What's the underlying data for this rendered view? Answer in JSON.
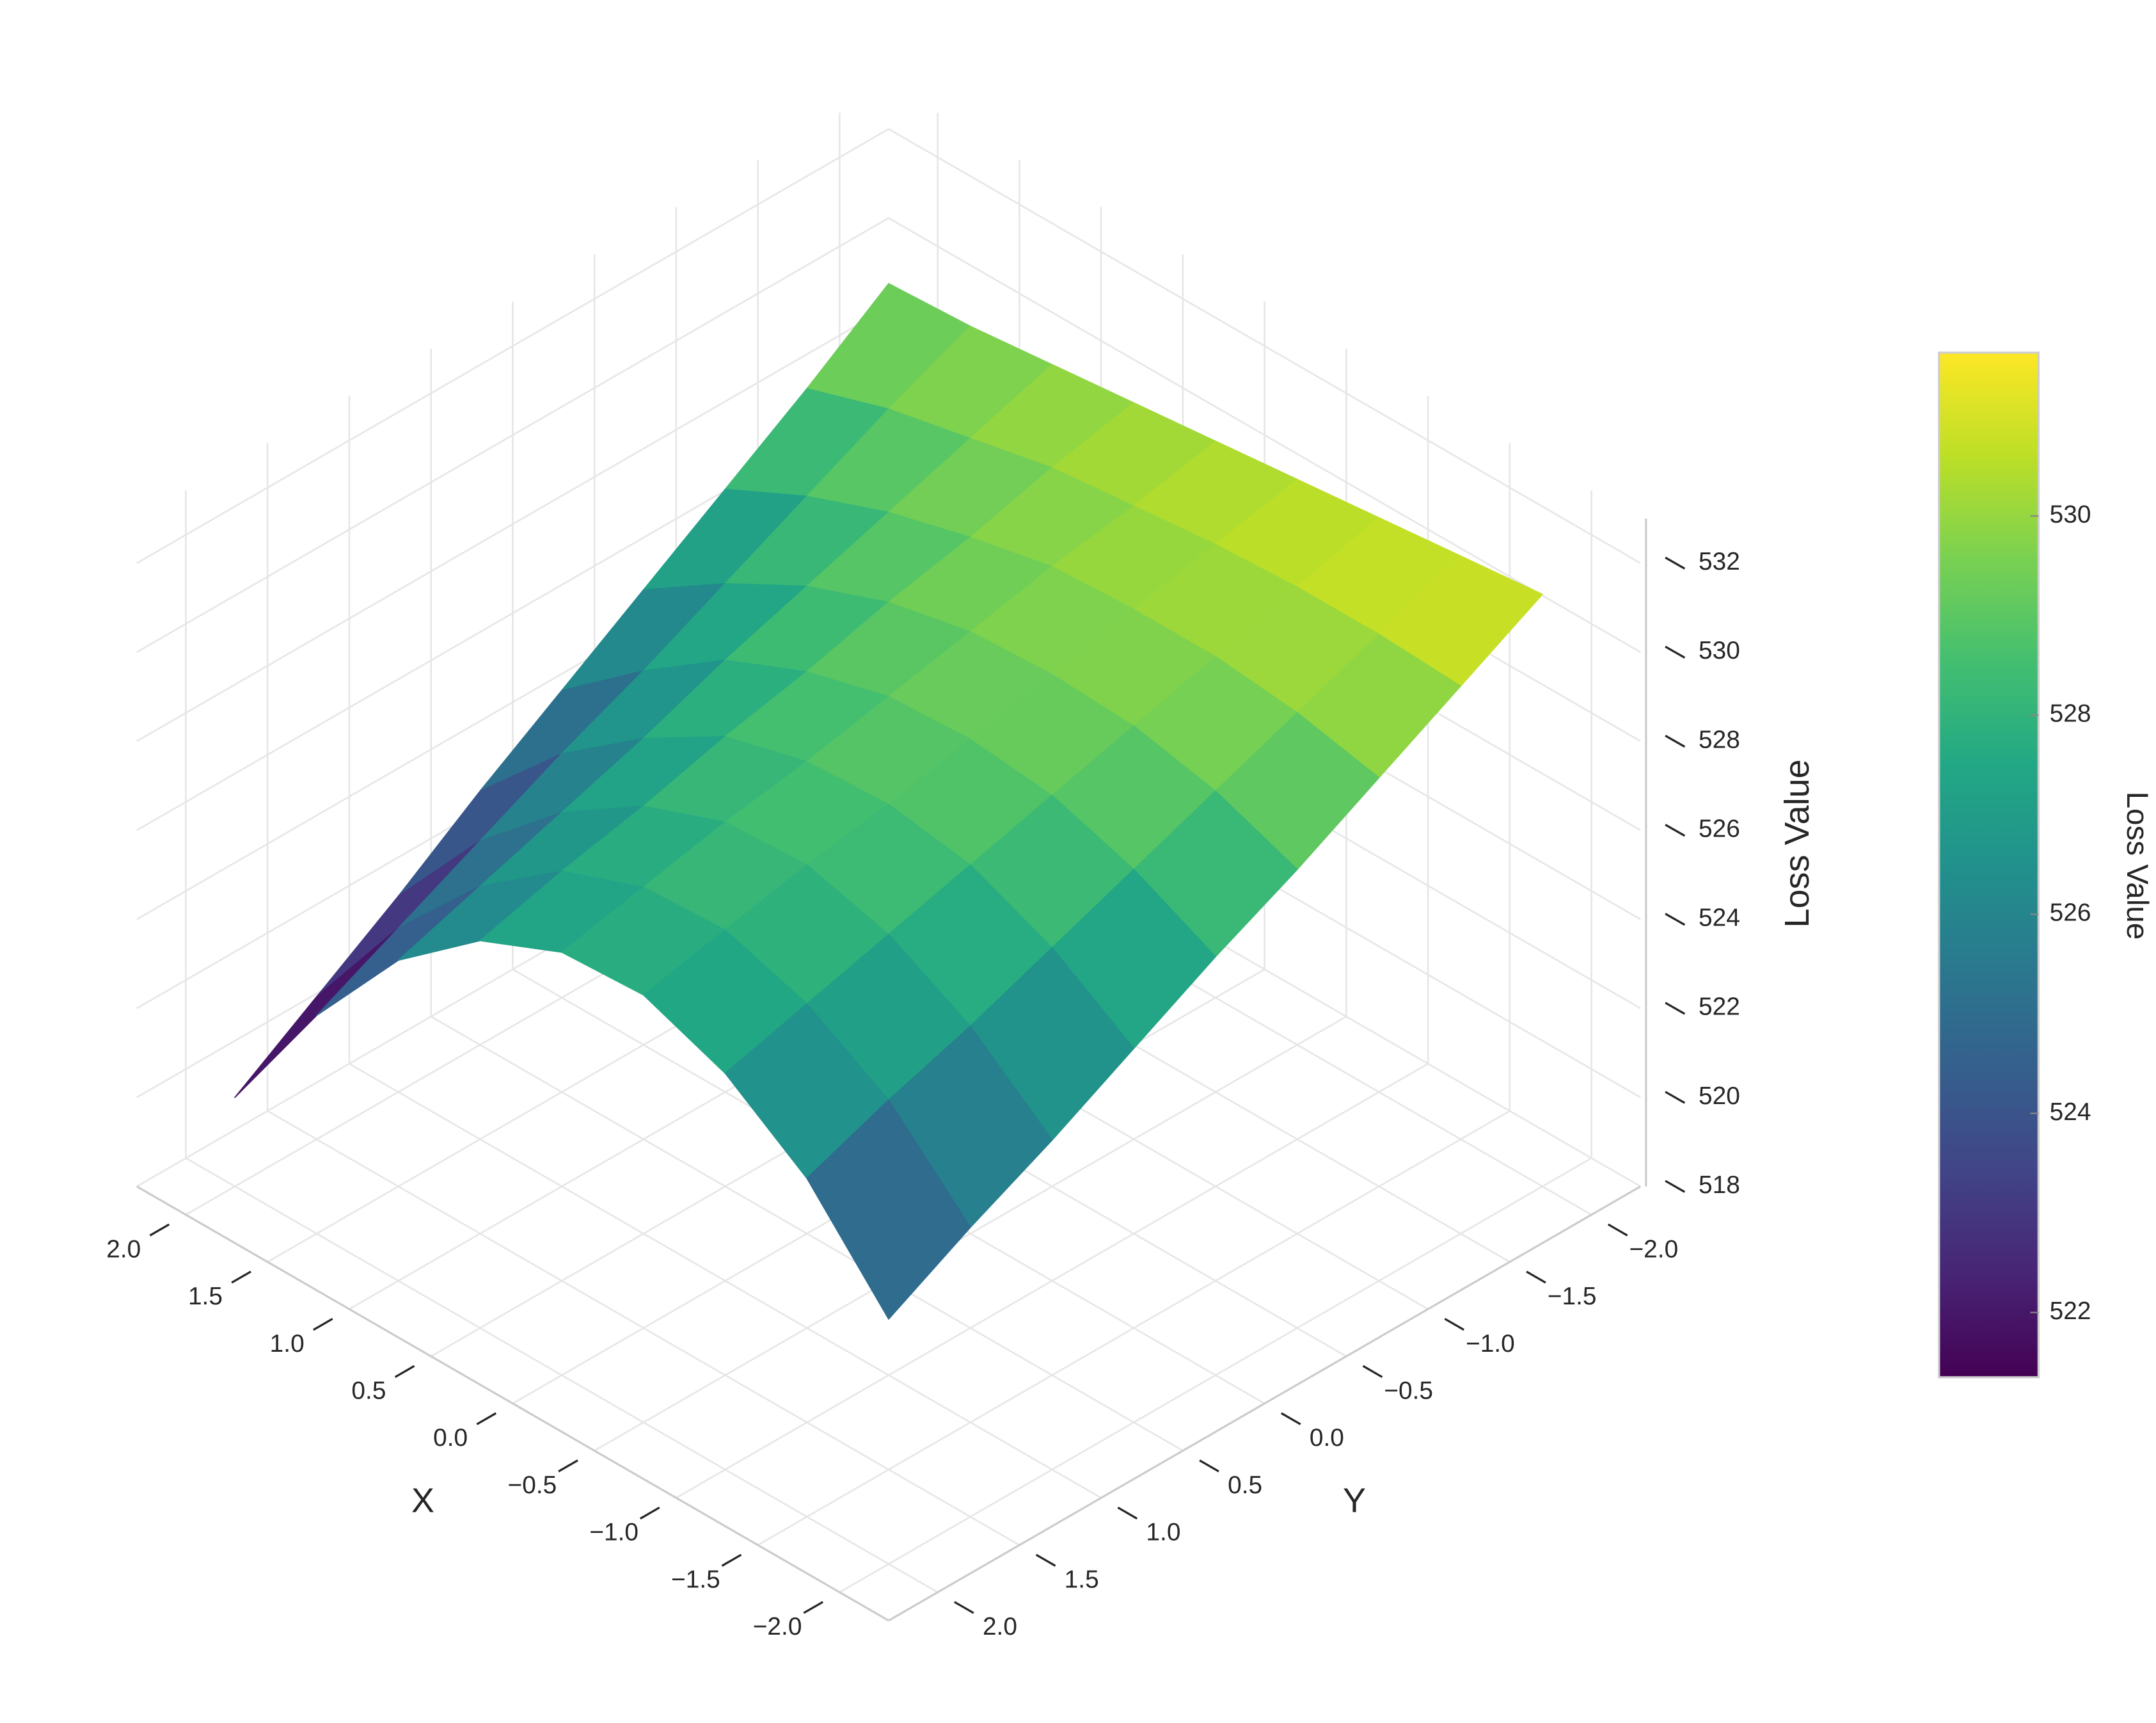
{
  "chart_data": {
    "type": "surface",
    "x": [
      -2,
      -1.5,
      -1,
      -0.5,
      0,
      0.5,
      1,
      1.5,
      2
    ],
    "y": [
      -2,
      -1.5,
      -1,
      -0.5,
      0,
      0.5,
      1,
      1.5,
      2
    ],
    "z": [
      [
        531.3,
        531.1,
        530.9,
        530.7,
        530.5,
        530.3,
        530.1,
        529.9,
        529.8
      ],
      [
        530.3,
        530.4,
        530.4,
        530.3,
        530.1,
        529.9,
        529.5,
        529.1,
        528.5
      ],
      [
        529.3,
        529.7,
        529.9,
        529.9,
        529.8,
        529.4,
        528.9,
        528.2,
        527.3
      ],
      [
        528.3,
        529.0,
        529.4,
        529.5,
        529.4,
        529.0,
        528.3,
        527.3,
        526.1
      ],
      [
        527.4,
        528.3,
        528.9,
        529.1,
        529.0,
        528.5,
        527.7,
        526.4,
        524.9
      ],
      [
        526.4,
        527.6,
        528.4,
        528.7,
        528.6,
        528.1,
        527.0,
        525.6,
        523.7
      ],
      [
        525.4,
        526.9,
        527.9,
        528.4,
        528.3,
        527.6,
        526.4,
        524.7,
        522.4
      ],
      [
        524.5,
        526.3,
        527.4,
        528.0,
        527.9,
        527.2,
        525.8,
        523.8,
        521.2
      ],
      [
        523.5,
        525.6,
        526.9,
        527.6,
        527.5,
        526.7,
        525.2,
        522.9,
        520.0
      ]
    ],
    "xlim": [
      -2.3,
      2.3
    ],
    "ylim": [
      -2.3,
      2.3
    ],
    "zlim": [
      518,
      533
    ],
    "xticks": [
      {
        "value": -2,
        "label": "−2.0"
      },
      {
        "value": -1.5,
        "label": "−1.5"
      },
      {
        "value": -1,
        "label": "−1.0"
      },
      {
        "value": -0.5,
        "label": "−0.5"
      },
      {
        "value": 0,
        "label": "0.0"
      },
      {
        "value": 0.5,
        "label": "0.5"
      },
      {
        "value": 1,
        "label": "1.0"
      },
      {
        "value": 1.5,
        "label": "1.5"
      },
      {
        "value": 2,
        "label": "2.0"
      }
    ],
    "yticks": [
      {
        "value": -2,
        "label": "−2.0"
      },
      {
        "value": -1.5,
        "label": "−1.5"
      },
      {
        "value": -1,
        "label": "−1.0"
      },
      {
        "value": -0.5,
        "label": "−0.5"
      },
      {
        "value": 0,
        "label": "0.0"
      },
      {
        "value": 0.5,
        "label": "0.5"
      },
      {
        "value": 1,
        "label": "1.0"
      },
      {
        "value": 1.5,
        "label": "1.5"
      },
      {
        "value": 2,
        "label": "2.0"
      }
    ],
    "zticks": [
      518,
      520,
      522,
      524,
      526,
      528,
      530,
      532
    ],
    "x_label": "X",
    "y_label": "Y",
    "z_label": "Loss Value",
    "colorscale": [
      "#440154",
      "#482475",
      "#414487",
      "#355f8d",
      "#2a788e",
      "#21918c",
      "#22a884",
      "#44bf70",
      "#7ad151",
      "#bddf26",
      "#fde725"
    ],
    "colorbar": {
      "title": "Loss Value",
      "clim": [
        521.35,
        531.64
      ],
      "ticks": [
        522,
        524,
        526,
        528,
        530
      ]
    },
    "grid": true
  }
}
